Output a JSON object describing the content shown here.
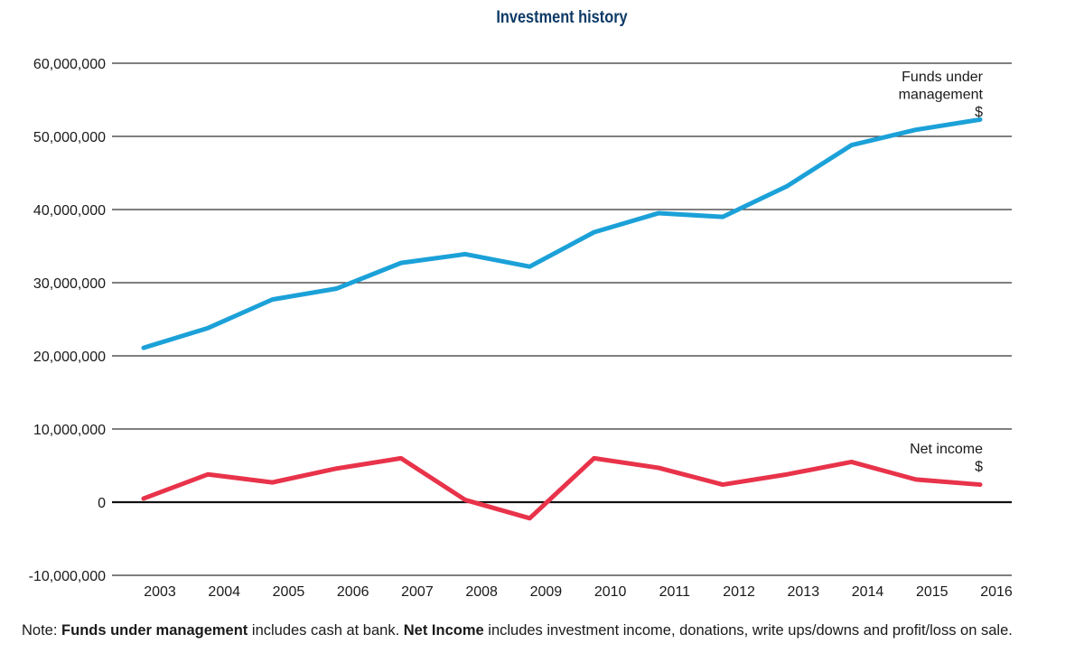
{
  "chart_data": {
    "type": "line",
    "title": "Investment history",
    "x": [
      "2003",
      "2004",
      "2005",
      "2006",
      "2007",
      "2008",
      "2009",
      "2010",
      "2011",
      "2012",
      "2013",
      "2014",
      "2015",
      "2016"
    ],
    "ylim": [
      -10000000,
      60000000
    ],
    "yticks": [
      -10000000,
      0,
      10000000,
      20000000,
      30000000,
      40000000,
      50000000,
      60000000
    ],
    "ytick_labels": [
      "-10,000,000",
      "0",
      "10,000,000",
      "20,000,000",
      "30,000,000",
      "40,000,000",
      "50,000,000",
      "60,000,000"
    ],
    "grid": true,
    "series": [
      {
        "name": "Funds under management",
        "unit": "$",
        "color": "#1ba1d8",
        "values": [
          21100000,
          23800000,
          27700000,
          29200000,
          32700000,
          33900000,
          32200000,
          36900000,
          39500000,
          39000000,
          43200000,
          48800000,
          50900000,
          52300000
        ]
      },
      {
        "name": "Net income",
        "unit": "$",
        "color": "#e8334a",
        "values": [
          500000,
          3800000,
          2700000,
          4600000,
          6000000,
          300000,
          -2200000,
          6000000,
          4700000,
          2400000,
          3800000,
          5500000,
          3100000,
          2400000
        ]
      }
    ]
  },
  "note": {
    "prefix": "Note: ",
    "term1": "Funds under management",
    "text1": " includes cash at bank. ",
    "term2": "Net Income",
    "text2": " includes investment income, donations, write ups/downs and profit/loss on sale."
  }
}
